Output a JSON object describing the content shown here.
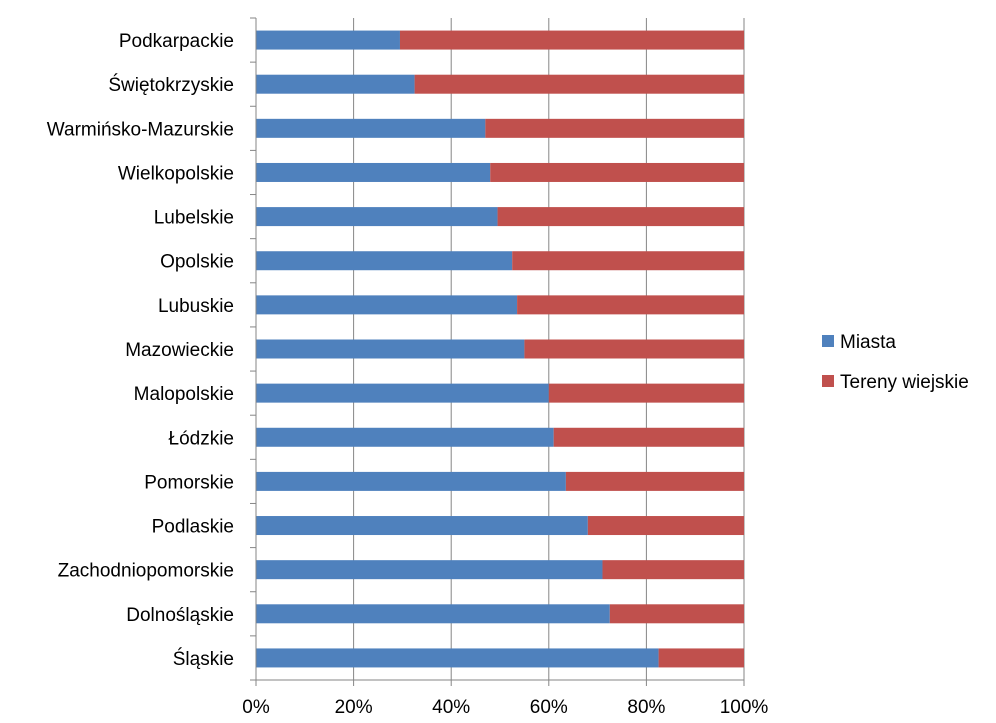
{
  "chart_data": {
    "type": "bar",
    "orientation": "horizontal",
    "stacked": "percent",
    "categories": [
      "Podkarpackie",
      "Świętokrzyskie",
      "Warmińsko-Mazurskie",
      "Wielkopolskie",
      "Lubelskie",
      "Opolskie",
      "Lubuskie",
      "Mazowieckie",
      "Malopolskie",
      "Łódzkie",
      "Pomorskie",
      "Podlaskie",
      "Zachodniopomorskie",
      "Dolnośląskie",
      "Śląskie"
    ],
    "series": [
      {
        "name": "Miasta",
        "color": "#4F81BD",
        "values": [
          29.5,
          32.5,
          47,
          48,
          49.5,
          52.5,
          53.5,
          55,
          60,
          61,
          63.5,
          68,
          71,
          72.5,
          82.5
        ]
      },
      {
        "name": "Tereny wiejskie",
        "color": "#C0504D",
        "values": [
          70.5,
          67.5,
          53,
          52,
          50.5,
          47.5,
          46.5,
          45,
          40,
          39,
          36.5,
          32,
          29,
          27.5,
          17.5
        ]
      }
    ],
    "xticks": [
      "0%",
      "20%",
      "40%",
      "60%",
      "80%",
      "100%"
    ],
    "xlim": [
      0,
      100
    ],
    "grid": true,
    "legend": "right"
  }
}
